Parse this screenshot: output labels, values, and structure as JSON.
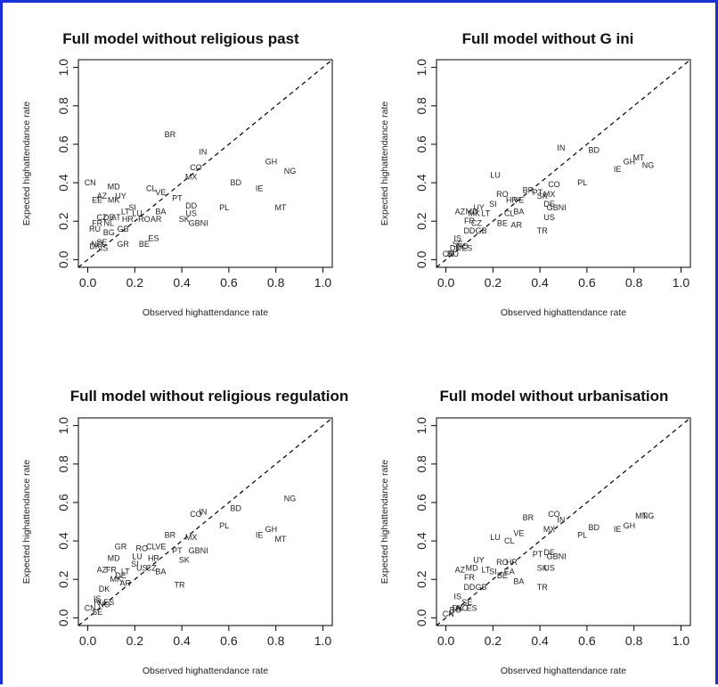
{
  "colors": {
    "frame": "#1a2fd6",
    "text": "#222222",
    "line": "#000000"
  },
  "chart_data": [
    {
      "type": "scatter",
      "title": "Full model without religious past",
      "xlabel": "Observed highattendance rate",
      "ylabel": "Expected highattendance rate",
      "xlim": [
        0,
        1
      ],
      "ylim": [
        0,
        1
      ],
      "xticks": [
        "0.0",
        "0.2",
        "0.4",
        "0.6",
        "0.8",
        "1.0"
      ],
      "yticks": [
        "0.0",
        "0.2",
        "0.4",
        "0.6",
        "0.8",
        "1.0"
      ],
      "reference_line": "y = x (dashed)",
      "points": [
        {
          "label": "BR",
          "x": 0.35,
          "y": 0.65
        },
        {
          "label": "IN",
          "x": 0.49,
          "y": 0.56
        },
        {
          "label": "GH",
          "x": 0.78,
          "y": 0.51
        },
        {
          "label": "CO",
          "x": 0.46,
          "y": 0.48
        },
        {
          "label": "NG",
          "x": 0.86,
          "y": 0.46
        },
        {
          "label": "MX",
          "x": 0.44,
          "y": 0.43
        },
        {
          "label": "BD",
          "x": 0.63,
          "y": 0.4
        },
        {
          "label": "IE",
          "x": 0.73,
          "y": 0.37
        },
        {
          "label": "CN",
          "x": 0.01,
          "y": 0.4
        },
        {
          "label": "MD",
          "x": 0.11,
          "y": 0.38
        },
        {
          "label": "CL",
          "x": 0.27,
          "y": 0.37
        },
        {
          "label": "VE",
          "x": 0.31,
          "y": 0.35
        },
        {
          "label": "AZ",
          "x": 0.06,
          "y": 0.33
        },
        {
          "label": "UY",
          "x": 0.14,
          "y": 0.33
        },
        {
          "label": "EE",
          "x": 0.04,
          "y": 0.31
        },
        {
          "label": "MK",
          "x": 0.11,
          "y": 0.31
        },
        {
          "label": "PT",
          "x": 0.38,
          "y": 0.32
        },
        {
          "label": "DD",
          "x": 0.44,
          "y": 0.28
        },
        {
          "label": "SI",
          "x": 0.19,
          "y": 0.27
        },
        {
          "label": "PL",
          "x": 0.58,
          "y": 0.27
        },
        {
          "label": "MT",
          "x": 0.82,
          "y": 0.27
        },
        {
          "label": "US",
          "x": 0.44,
          "y": 0.24
        },
        {
          "label": "LT",
          "x": 0.16,
          "y": 0.25
        },
        {
          "label": "LU",
          "x": 0.21,
          "y": 0.24
        },
        {
          "label": "BA",
          "x": 0.31,
          "y": 0.25
        },
        {
          "label": "CZ",
          "x": 0.06,
          "y": 0.22
        },
        {
          "label": "DE",
          "x": 0.09,
          "y": 0.22
        },
        {
          "label": "AT",
          "x": 0.12,
          "y": 0.22
        },
        {
          "label": "HR",
          "x": 0.17,
          "y": 0.21
        },
        {
          "label": "RO",
          "x": 0.24,
          "y": 0.21
        },
        {
          "label": "AR",
          "x": 0.29,
          "y": 0.21
        },
        {
          "label": "SK",
          "x": 0.41,
          "y": 0.21
        },
        {
          "label": "GBNI",
          "x": 0.47,
          "y": 0.19
        },
        {
          "label": "FR",
          "x": 0.04,
          "y": 0.19
        },
        {
          "label": "NL",
          "x": 0.09,
          "y": 0.19
        },
        {
          "label": "RU",
          "x": 0.03,
          "y": 0.16
        },
        {
          "label": "GB",
          "x": 0.15,
          "y": 0.16
        },
        {
          "label": "BG",
          "x": 0.09,
          "y": 0.14
        },
        {
          "label": "ES",
          "x": 0.28,
          "y": 0.11
        },
        {
          "label": "GR",
          "x": 0.15,
          "y": 0.08
        },
        {
          "label": "BE",
          "x": 0.24,
          "y": 0.08
        },
        {
          "label": "SE",
          "x": 0.06,
          "y": 0.09
        },
        {
          "label": "NO",
          "x": 0.04,
          "y": 0.08
        },
        {
          "label": "DK",
          "x": 0.03,
          "y": 0.07
        },
        {
          "label": "IS",
          "x": 0.07,
          "y": 0.06
        }
      ]
    },
    {
      "type": "scatter",
      "title": "Full model without G ini",
      "xlabel": "Observed highattendance rate",
      "ylabel": "Expected highattendance rate",
      "xlim": [
        0,
        1
      ],
      "ylim": [
        0,
        1
      ],
      "xticks": [
        "0.0",
        "0.2",
        "0.4",
        "0.6",
        "0.8",
        "1.0"
      ],
      "yticks": [
        "0.0",
        "0.2",
        "0.4",
        "0.6",
        "0.8",
        "1.0"
      ],
      "reference_line": "y = x (dashed)",
      "points": [
        {
          "label": "IN",
          "x": 0.49,
          "y": 0.58
        },
        {
          "label": "BD",
          "x": 0.63,
          "y": 0.57
        },
        {
          "label": "MT",
          "x": 0.82,
          "y": 0.53
        },
        {
          "label": "GH",
          "x": 0.78,
          "y": 0.51
        },
        {
          "label": "NG",
          "x": 0.86,
          "y": 0.49
        },
        {
          "label": "IE",
          "x": 0.73,
          "y": 0.47
        },
        {
          "label": "LU",
          "x": 0.21,
          "y": 0.44
        },
        {
          "label": "PL",
          "x": 0.58,
          "y": 0.4
        },
        {
          "label": "CO",
          "x": 0.46,
          "y": 0.39
        },
        {
          "label": "BR",
          "x": 0.35,
          "y": 0.36
        },
        {
          "label": "PT",
          "x": 0.39,
          "y": 0.35
        },
        {
          "label": "SK",
          "x": 0.41,
          "y": 0.33
        },
        {
          "label": "MX",
          "x": 0.44,
          "y": 0.34
        },
        {
          "label": "RO",
          "x": 0.24,
          "y": 0.34
        },
        {
          "label": "VE",
          "x": 0.31,
          "y": 0.31
        },
        {
          "label": "HR",
          "x": 0.28,
          "y": 0.31
        },
        {
          "label": "SI",
          "x": 0.2,
          "y": 0.29
        },
        {
          "label": "DE",
          "x": 0.44,
          "y": 0.29
        },
        {
          "label": "GBNI",
          "x": 0.47,
          "y": 0.27
        },
        {
          "label": "US",
          "x": 0.44,
          "y": 0.22
        },
        {
          "label": "AZ",
          "x": 0.06,
          "y": 0.25
        },
        {
          "label": "UY",
          "x": 0.14,
          "y": 0.27
        },
        {
          "label": "MD",
          "x": 0.11,
          "y": 0.25
        },
        {
          "label": "MK",
          "x": 0.12,
          "y": 0.24
        },
        {
          "label": "BA",
          "x": 0.31,
          "y": 0.25
        },
        {
          "label": "CL",
          "x": 0.27,
          "y": 0.24
        },
        {
          "label": "LT",
          "x": 0.17,
          "y": 0.24
        },
        {
          "label": "FR",
          "x": 0.1,
          "y": 0.2
        },
        {
          "label": "CZ",
          "x": 0.13,
          "y": 0.19
        },
        {
          "label": "BE",
          "x": 0.24,
          "y": 0.19
        },
        {
          "label": "AR",
          "x": 0.3,
          "y": 0.18
        },
        {
          "label": "DD",
          "x": 0.1,
          "y": 0.15
        },
        {
          "label": "GB",
          "x": 0.15,
          "y": 0.15
        },
        {
          "label": "TR",
          "x": 0.41,
          "y": 0.15
        },
        {
          "label": "IS",
          "x": 0.05,
          "y": 0.11
        },
        {
          "label": "DK",
          "x": 0.04,
          "y": 0.06
        },
        {
          "label": "CN",
          "x": 0.01,
          "y": 0.03
        },
        {
          "label": "RU",
          "x": 0.03,
          "y": 0.03
        },
        {
          "label": "SE",
          "x": 0.05,
          "y": 0.08
        },
        {
          "label": "NO",
          "x": 0.07,
          "y": 0.07
        },
        {
          "label": "ES",
          "x": 0.09,
          "y": 0.06
        }
      ]
    },
    {
      "type": "scatter",
      "title": "Full model without religious regulation",
      "xlabel": "Observed highattendance rate",
      "ylabel": "Expected highattendance rate",
      "xlim": [
        0,
        1
      ],
      "ylim": [
        0,
        1
      ],
      "xticks": [
        "0.0",
        "0.2",
        "0.4",
        "0.6",
        "0.8",
        "1.0"
      ],
      "yticks": [
        "0.0",
        "0.2",
        "0.4",
        "0.6",
        "0.8",
        "1.0"
      ],
      "reference_line": "y = x (dashed)",
      "points": [
        {
          "label": "NG",
          "x": 0.86,
          "y": 0.62
        },
        {
          "label": "BD",
          "x": 0.63,
          "y": 0.57
        },
        {
          "label": "IN",
          "x": 0.49,
          "y": 0.55
        },
        {
          "label": "CO",
          "x": 0.46,
          "y": 0.54
        },
        {
          "label": "PL",
          "x": 0.58,
          "y": 0.48
        },
        {
          "label": "GH",
          "x": 0.78,
          "y": 0.46
        },
        {
          "label": "IE",
          "x": 0.73,
          "y": 0.43
        },
        {
          "label": "MT",
          "x": 0.82,
          "y": 0.41
        },
        {
          "label": "BR",
          "x": 0.35,
          "y": 0.43
        },
        {
          "label": "MX",
          "x": 0.44,
          "y": 0.42
        },
        {
          "label": "GR",
          "x": 0.14,
          "y": 0.37
        },
        {
          "label": "RO",
          "x": 0.23,
          "y": 0.36
        },
        {
          "label": "CL",
          "x": 0.27,
          "y": 0.37
        },
        {
          "label": "VE",
          "x": 0.31,
          "y": 0.37
        },
        {
          "label": "PT",
          "x": 0.38,
          "y": 0.35
        },
        {
          "label": "GBNI",
          "x": 0.47,
          "y": 0.35
        },
        {
          "label": "MD",
          "x": 0.11,
          "y": 0.31
        },
        {
          "label": "LU",
          "x": 0.21,
          "y": 0.32
        },
        {
          "label": "HR",
          "x": 0.28,
          "y": 0.31
        },
        {
          "label": "SK",
          "x": 0.41,
          "y": 0.3
        },
        {
          "label": "SI",
          "x": 0.2,
          "y": 0.28
        },
        {
          "label": "US",
          "x": 0.23,
          "y": 0.26
        },
        {
          "label": "CZ",
          "x": 0.27,
          "y": 0.26
        },
        {
          "label": "BA",
          "x": 0.31,
          "y": 0.24
        },
        {
          "label": "AZ",
          "x": 0.06,
          "y": 0.25
        },
        {
          "label": "FR",
          "x": 0.1,
          "y": 0.25
        },
        {
          "label": "LT",
          "x": 0.16,
          "y": 0.24
        },
        {
          "label": "DE",
          "x": 0.14,
          "y": 0.22
        },
        {
          "label": "MK",
          "x": 0.12,
          "y": 0.2
        },
        {
          "label": "AR",
          "x": 0.16,
          "y": 0.18
        },
        {
          "label": "TR",
          "x": 0.39,
          "y": 0.17
        },
        {
          "label": "DK",
          "x": 0.07,
          "y": 0.15
        },
        {
          "label": "IS",
          "x": 0.04,
          "y": 0.1
        },
        {
          "label": "RU",
          "x": 0.05,
          "y": 0.08
        },
        {
          "label": "NO",
          "x": 0.07,
          "y": 0.07
        },
        {
          "label": "CN",
          "x": 0.01,
          "y": 0.05
        },
        {
          "label": "SE",
          "x": 0.04,
          "y": 0.03
        },
        {
          "label": "ES",
          "x": 0.09,
          "y": 0.08
        }
      ]
    },
    {
      "type": "scatter",
      "title": "Full model without urbanisation",
      "xlabel": "Observed highattendance rate",
      "ylabel": "Expected highattendance rate",
      "xlim": [
        0,
        1
      ],
      "ylim": [
        0,
        1
      ],
      "xticks": [
        "0.0",
        "0.2",
        "0.4",
        "0.6",
        "0.8",
        "1.0"
      ],
      "yticks": [
        "0.0",
        "0.2",
        "0.4",
        "0.6",
        "0.8",
        "1.0"
      ],
      "reference_line": "y = x (dashed)",
      "points": [
        {
          "label": "CO",
          "x": 0.46,
          "y": 0.54
        },
        {
          "label": "BR",
          "x": 0.35,
          "y": 0.52
        },
        {
          "label": "IN",
          "x": 0.49,
          "y": 0.51
        },
        {
          "label": "MT",
          "x": 0.83,
          "y": 0.53
        },
        {
          "label": "NG",
          "x": 0.86,
          "y": 0.53
        },
        {
          "label": "GH",
          "x": 0.78,
          "y": 0.48
        },
        {
          "label": "BD",
          "x": 0.63,
          "y": 0.47
        },
        {
          "label": "IE",
          "x": 0.73,
          "y": 0.46
        },
        {
          "label": "MX",
          "x": 0.44,
          "y": 0.46
        },
        {
          "label": "PL",
          "x": 0.58,
          "y": 0.43
        },
        {
          "label": "VE",
          "x": 0.31,
          "y": 0.44
        },
        {
          "label": "LU",
          "x": 0.21,
          "y": 0.42
        },
        {
          "label": "CL",
          "x": 0.27,
          "y": 0.4
        },
        {
          "label": "PT",
          "x": 0.39,
          "y": 0.33
        },
        {
          "label": "DE",
          "x": 0.44,
          "y": 0.34
        },
        {
          "label": "GBNI",
          "x": 0.47,
          "y": 0.32
        },
        {
          "label": "UY",
          "x": 0.14,
          "y": 0.3
        },
        {
          "label": "RO",
          "x": 0.24,
          "y": 0.29
        },
        {
          "label": "HR",
          "x": 0.28,
          "y": 0.29
        },
        {
          "label": "SK",
          "x": 0.41,
          "y": 0.26
        },
        {
          "label": "US",
          "x": 0.44,
          "y": 0.26
        },
        {
          "label": "AZ",
          "x": 0.06,
          "y": 0.25
        },
        {
          "label": "MD",
          "x": 0.11,
          "y": 0.26
        },
        {
          "label": "SI",
          "x": 0.2,
          "y": 0.24
        },
        {
          "label": "LT",
          "x": 0.17,
          "y": 0.25
        },
        {
          "label": "EA",
          "x": 0.27,
          "y": 0.24
        },
        {
          "label": "BE",
          "x": 0.24,
          "y": 0.22
        },
        {
          "label": "BA",
          "x": 0.31,
          "y": 0.19
        },
        {
          "label": "FR",
          "x": 0.1,
          "y": 0.21
        },
        {
          "label": "DD",
          "x": 0.1,
          "y": 0.16
        },
        {
          "label": "GB",
          "x": 0.15,
          "y": 0.16
        },
        {
          "label": "TR",
          "x": 0.41,
          "y": 0.16
        },
        {
          "label": "IS",
          "x": 0.05,
          "y": 0.11
        },
        {
          "label": "SE",
          "x": 0.09,
          "y": 0.08
        },
        {
          "label": "DK",
          "x": 0.05,
          "y": 0.05
        },
        {
          "label": "CN",
          "x": 0.01,
          "y": 0.02
        },
        {
          "label": "RU",
          "x": 0.04,
          "y": 0.04
        },
        {
          "label": "NO",
          "x": 0.07,
          "y": 0.05
        },
        {
          "label": "ES",
          "x": 0.11,
          "y": 0.05
        }
      ]
    }
  ]
}
